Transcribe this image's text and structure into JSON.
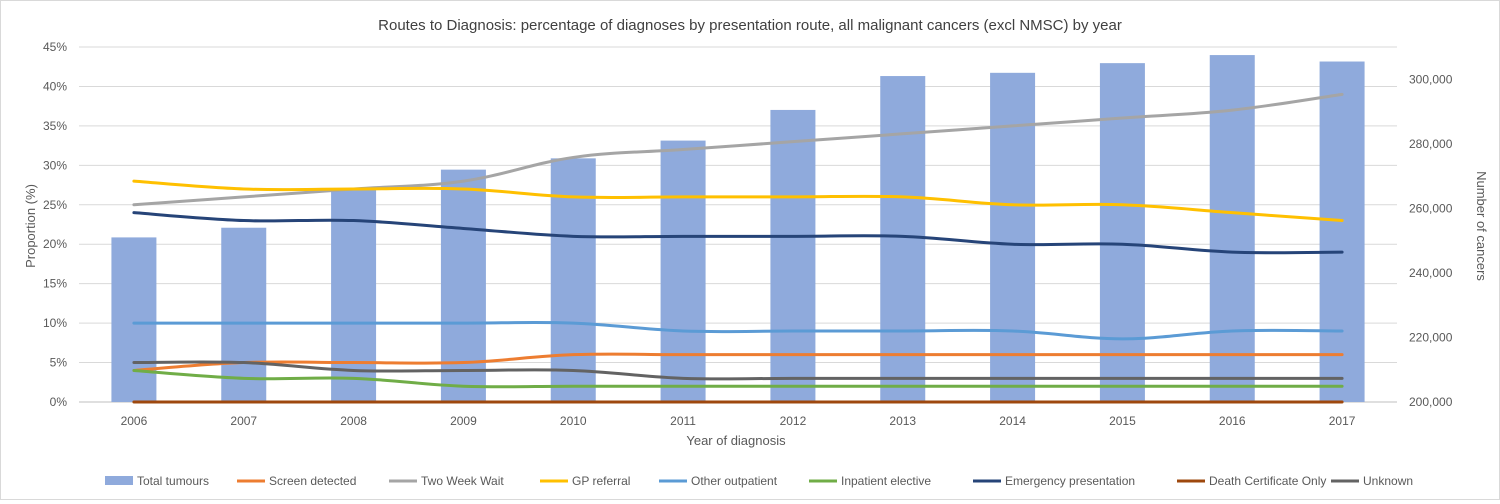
{
  "chart_data": {
    "type": "bar",
    "title": "Routes to Diagnosis: percentage of diagnoses by presentation route, all malignant cancers (excl NMSC) by year",
    "xlabel": "Year of diagnosis",
    "ylabel": "Proportion (%)",
    "y2label": "Number of cancers",
    "categories": [
      "2006",
      "2007",
      "2008",
      "2009",
      "2010",
      "2011",
      "2012",
      "2013",
      "2014",
      "2015",
      "2016",
      "2017"
    ],
    "ylim": [
      0,
      45
    ],
    "yticks": [
      "0%",
      "5%",
      "10%",
      "15%",
      "20%",
      "25%",
      "30%",
      "35%",
      "40%",
      "45%"
    ],
    "y2lim": [
      200000,
      310000
    ],
    "y2ticks": [
      "200,000",
      "220,000",
      "240,000",
      "260,000",
      "280,000",
      "300,000"
    ],
    "bar_series": {
      "name": "Total tumours",
      "color": "#8faadc",
      "values": [
        251000,
        254000,
        266000,
        272000,
        275500,
        281000,
        290500,
        301000,
        302000,
        305000,
        307500,
        305500
      ]
    },
    "series": [
      {
        "name": "Screen detected",
        "color": "#ed7d31",
        "values": [
          4,
          5,
          5,
          5,
          6,
          6,
          6,
          6,
          6,
          6,
          6,
          6
        ]
      },
      {
        "name": "Two Week Wait",
        "color": "#a5a5a5",
        "values": [
          25,
          26,
          27,
          28,
          31,
          32,
          33,
          34,
          35,
          36,
          37,
          39
        ]
      },
      {
        "name": "GP referral",
        "color": "#ffc000",
        "values": [
          28,
          27,
          27,
          27,
          26,
          26,
          26,
          26,
          25,
          25,
          24,
          23
        ]
      },
      {
        "name": "Other outpatient",
        "color": "#5b9bd5",
        "values": [
          10,
          10,
          10,
          10,
          10,
          9,
          9,
          9,
          9,
          8,
          9,
          9
        ]
      },
      {
        "name": "Inpatient elective",
        "color": "#70ad47",
        "values": [
          4,
          3,
          3,
          2,
          2,
          2,
          2,
          2,
          2,
          2,
          2,
          2
        ]
      },
      {
        "name": "Emergency presentation",
        "color": "#264478",
        "values": [
          24,
          23,
          23,
          22,
          21,
          21,
          21,
          21,
          20,
          20,
          19,
          19
        ]
      },
      {
        "name": "Death Certificate Only",
        "color": "#9e480e",
        "values": [
          0,
          0,
          0,
          0,
          0,
          0,
          0,
          0,
          0,
          0,
          0,
          0
        ]
      },
      {
        "name": "Unknown",
        "color": "#636363",
        "values": [
          5,
          5,
          4,
          4,
          4,
          3,
          3,
          3,
          3,
          3,
          3,
          3
        ]
      }
    ],
    "legend": "bottom",
    "grid": true
  }
}
